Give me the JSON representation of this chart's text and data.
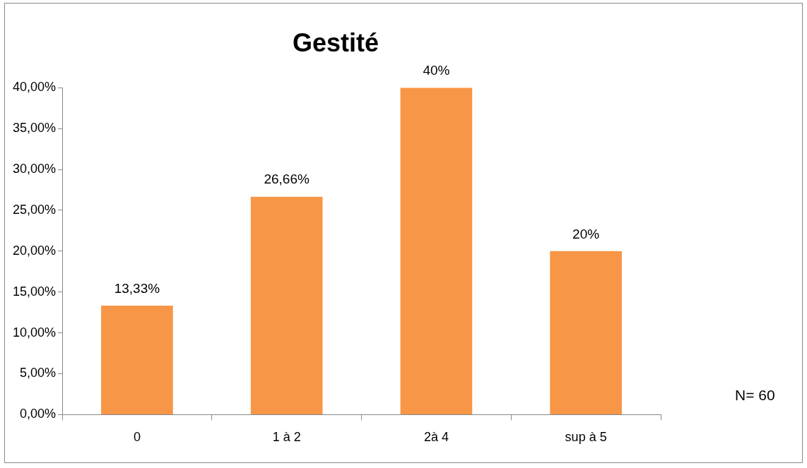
{
  "chart_data": {
    "type": "bar",
    "title": "Gestité",
    "categories": [
      "0",
      "1 à 2",
      "2à 4",
      "sup à 5"
    ],
    "values": [
      13.33,
      26.66,
      40,
      20
    ],
    "value_labels": [
      "13,33%",
      "26,66%",
      "40%",
      "20%"
    ],
    "color": "#f79646",
    "ylim": [
      0,
      40
    ],
    "yticks": [
      {
        "value": 0,
        "label": "0,00%"
      },
      {
        "value": 5,
        "label": "5,00%"
      },
      {
        "value": 10,
        "label": "10,00%"
      },
      {
        "value": 15,
        "label": "15,00%"
      },
      {
        "value": 20,
        "label": "20,00%"
      },
      {
        "value": 25,
        "label": "25,00%"
      },
      {
        "value": 30,
        "label": "30,00%"
      },
      {
        "value": 35,
        "label": "35,00%"
      },
      {
        "value": 40,
        "label": "40,00%"
      }
    ],
    "grid": false,
    "legend": false,
    "annotations": [
      "N= 60"
    ]
  }
}
